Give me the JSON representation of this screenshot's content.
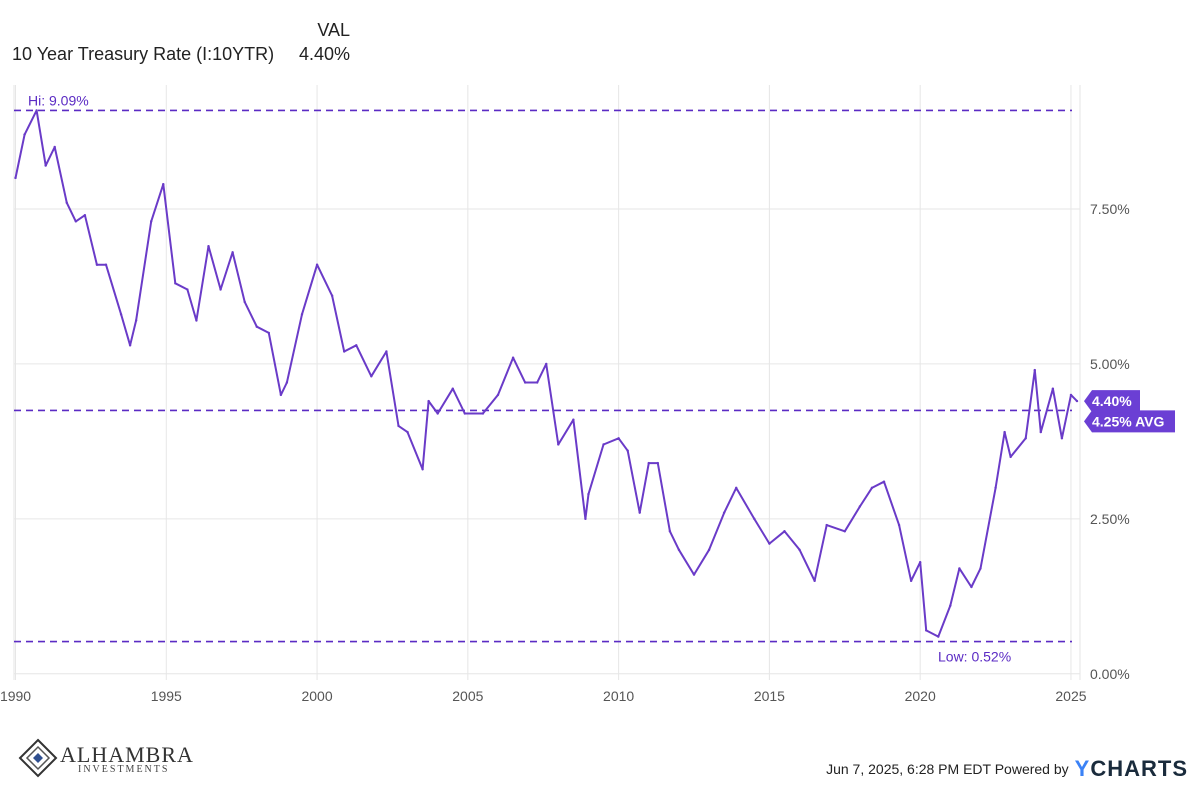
{
  "legend": {
    "column_header": "VAL",
    "series_name": "10 Year Treasury Rate (I:10YTR)",
    "series_value": "4.40%"
  },
  "colors": {
    "line": "#6a3bc8",
    "dashed": "#5b2bc4",
    "badge": "#6b3fd4",
    "grid": "#e6e6e6",
    "axis_text": "#555555"
  },
  "chart_data": {
    "type": "line",
    "title": "",
    "xlabel": "",
    "ylabel": "",
    "xlim": [
      1989.95,
      2025.3
    ],
    "ylim": [
      -0.1,
      9.5
    ],
    "x_ticks": [
      "1990",
      "1995",
      "2000",
      "2005",
      "2010",
      "2015",
      "2020",
      "2025"
    ],
    "y_ticks": [
      "0.00%",
      "2.50%",
      "5.00%",
      "7.50%"
    ],
    "y_tick_values": [
      0,
      2.5,
      5,
      7.5
    ],
    "grid": true,
    "series": [
      {
        "name": "10 Year Treasury Rate (I:10YTR)",
        "x": [
          1990.0,
          1990.3,
          1990.7,
          1991.0,
          1991.3,
          1991.7,
          1992.0,
          1992.3,
          1992.7,
          1993.0,
          1993.5,
          1993.8,
          1994.0,
          1994.5,
          1994.9,
          1995.3,
          1995.7,
          1996.0,
          1996.4,
          1996.8,
          1997.2,
          1997.6,
          1998.0,
          1998.4,
          1998.8,
          1999.0,
          1999.5,
          2000.0,
          2000.5,
          2000.9,
          2001.3,
          2001.8,
          2002.3,
          2002.7,
          2003.0,
          2003.5,
          2003.7,
          2004.0,
          2004.5,
          2004.9,
          2005.5,
          2006.0,
          2006.5,
          2006.9,
          2007.3,
          2007.6,
          2008.0,
          2008.5,
          2008.9,
          2009.0,
          2009.5,
          2010.0,
          2010.3,
          2010.7,
          2011.0,
          2011.3,
          2011.7,
          2012.0,
          2012.5,
          2013.0,
          2013.5,
          2013.9,
          2014.5,
          2015.0,
          2015.5,
          2016.0,
          2016.5,
          2016.9,
          2017.5,
          2018.0,
          2018.4,
          2018.8,
          2019.3,
          2019.7,
          2020.0,
          2020.2,
          2020.6,
          2021.0,
          2021.3,
          2021.7,
          2022.0,
          2022.5,
          2022.8,
          2023.0,
          2023.5,
          2023.8,
          2024.0,
          2024.4,
          2024.7,
          2025.0,
          2025.2
        ],
        "values": [
          8.0,
          8.7,
          9.09,
          8.2,
          8.5,
          7.6,
          7.3,
          7.4,
          6.6,
          6.6,
          5.8,
          5.3,
          5.7,
          7.3,
          7.9,
          6.3,
          6.2,
          5.7,
          6.9,
          6.2,
          6.8,
          6.0,
          5.6,
          5.5,
          4.5,
          4.7,
          5.8,
          6.6,
          6.1,
          5.2,
          5.3,
          4.8,
          5.2,
          4.0,
          3.9,
          3.3,
          4.4,
          4.2,
          4.6,
          4.2,
          4.2,
          4.5,
          5.1,
          4.7,
          4.7,
          5.0,
          3.7,
          4.1,
          2.5,
          2.9,
          3.7,
          3.8,
          3.6,
          2.6,
          3.4,
          3.4,
          2.3,
          2.0,
          1.6,
          2.0,
          2.6,
          3.0,
          2.5,
          2.1,
          2.3,
          2.0,
          1.5,
          2.4,
          2.3,
          2.7,
          3.0,
          3.1,
          2.4,
          1.5,
          1.8,
          0.7,
          0.6,
          1.1,
          1.7,
          1.4,
          1.7,
          3.0,
          3.9,
          3.5,
          3.8,
          4.9,
          3.9,
          4.6,
          3.8,
          4.5,
          4.4
        ]
      }
    ],
    "reference_lines": [
      {
        "value": 9.09,
        "label": "Hi: 9.09%"
      },
      {
        "value": 0.52,
        "label": "Low: 0.52%"
      },
      {
        "value": 4.25,
        "label": "4.25% AVG"
      }
    ],
    "last_value_label": "4.40%"
  },
  "footer": {
    "logo_name": "ALHAMBRA",
    "logo_sub": "INVESTMENTS",
    "timestamp": "Jun 7, 2025, 6:28 PM EDT Powered by",
    "brand_y": "Y",
    "brand_rest": "CHARTS"
  }
}
